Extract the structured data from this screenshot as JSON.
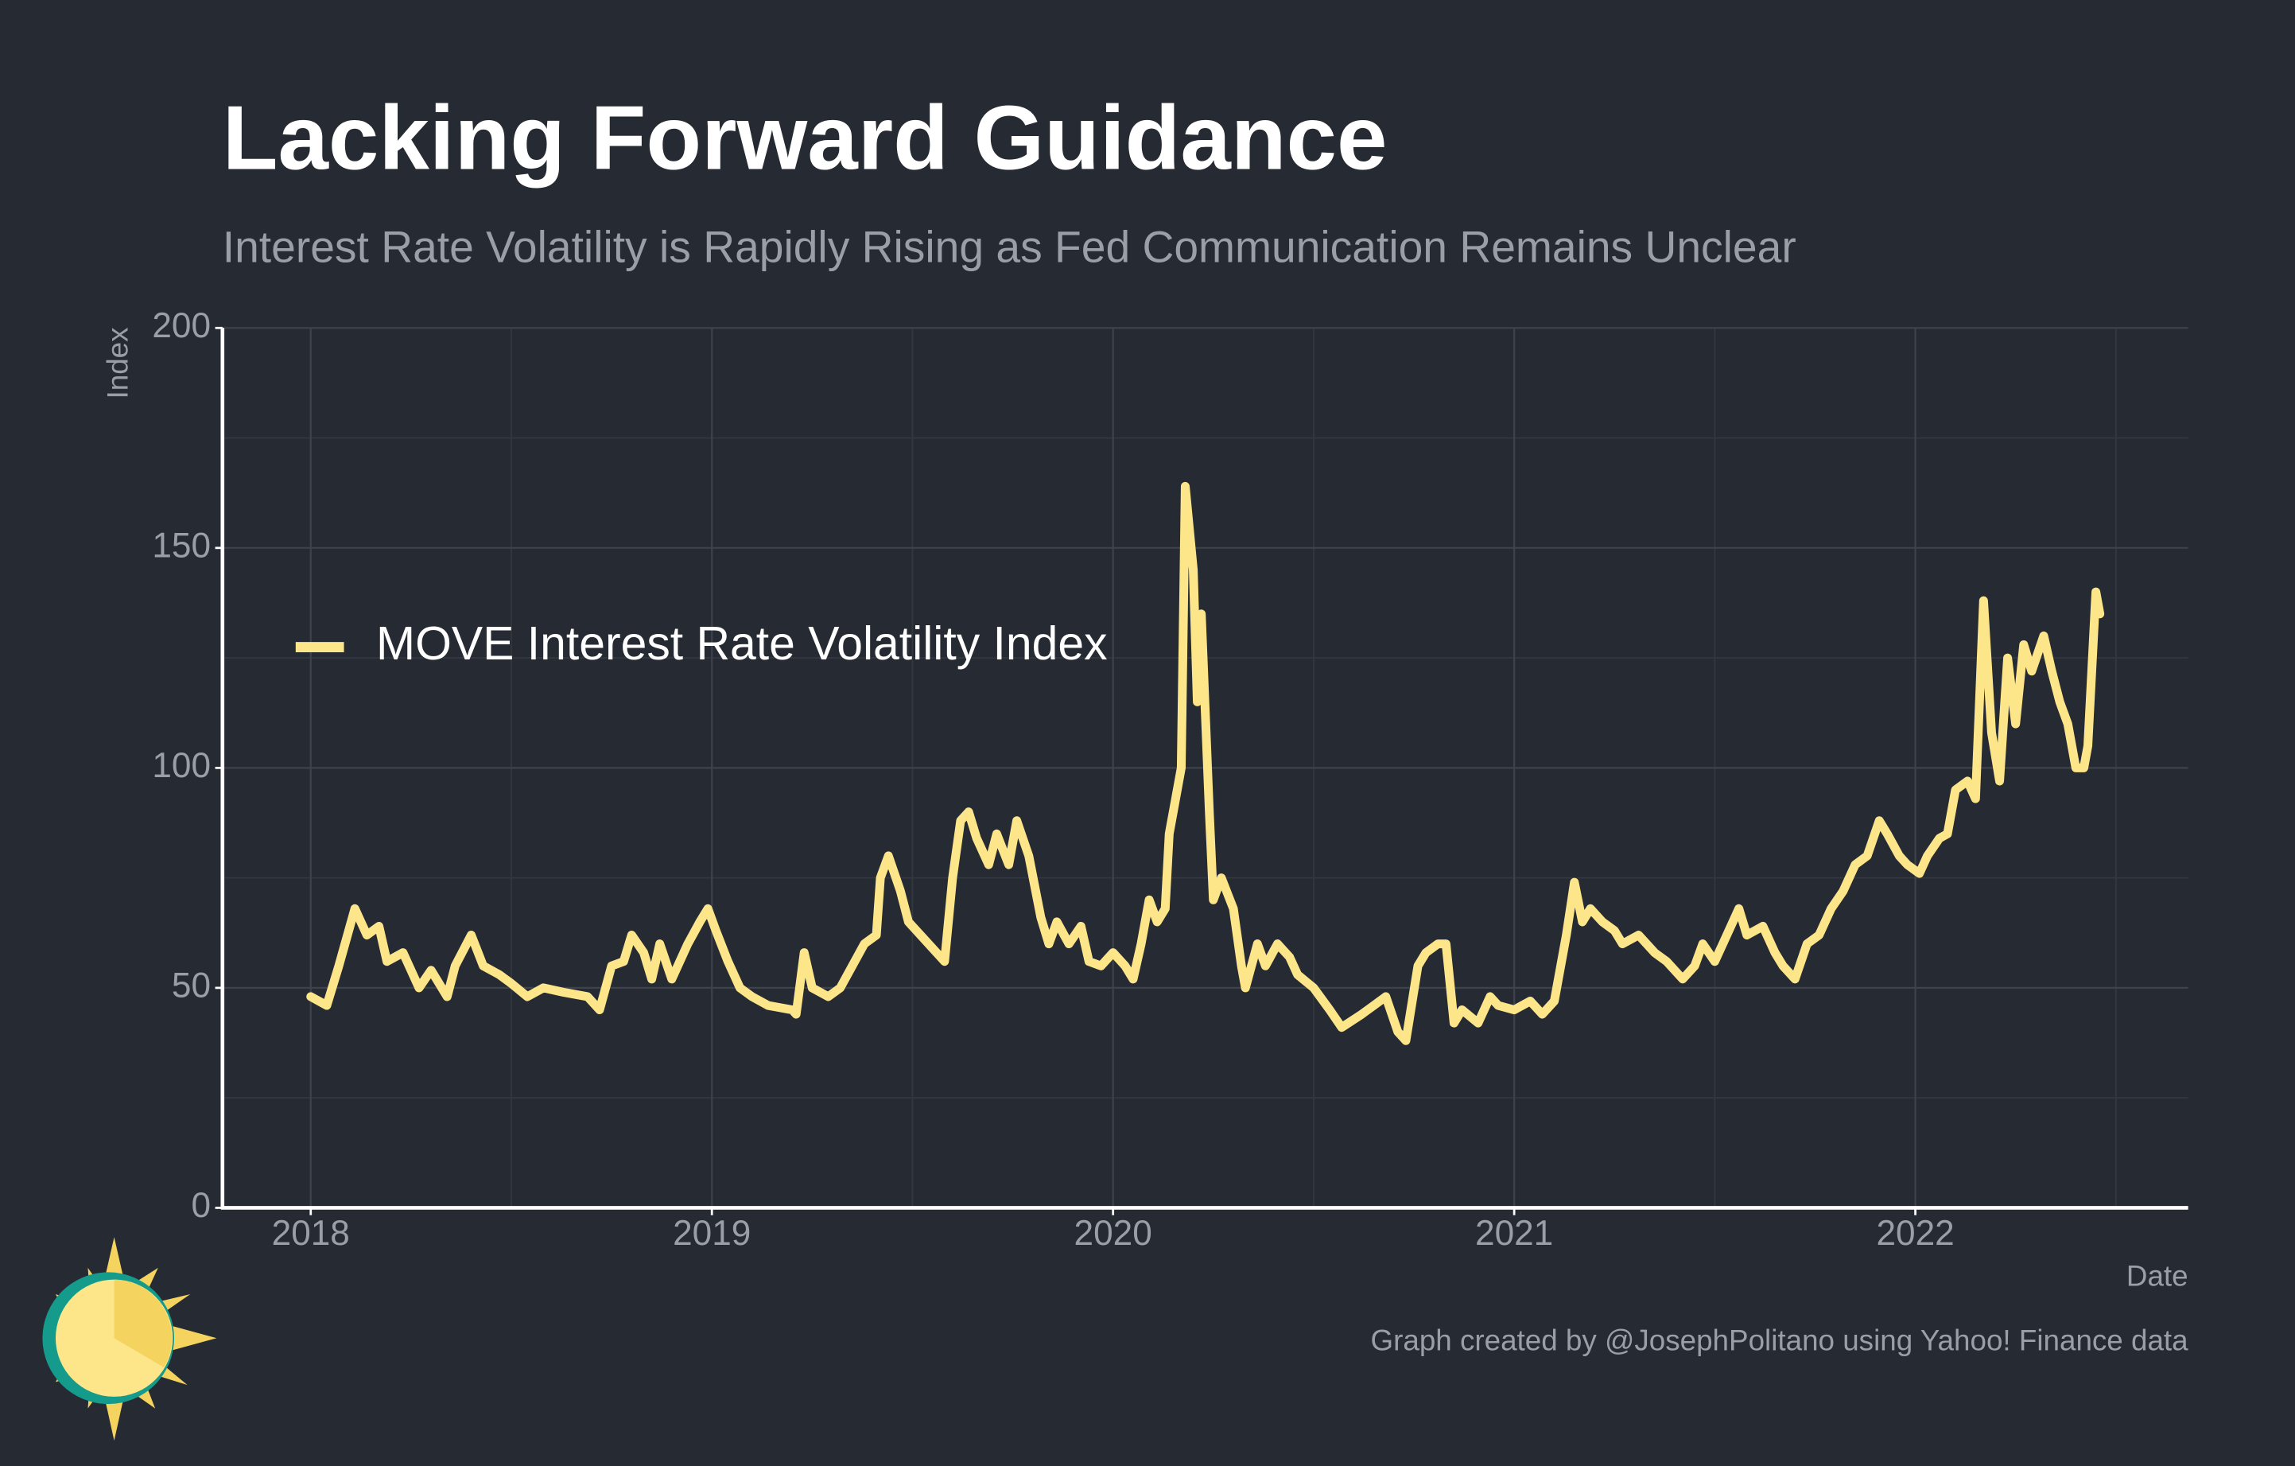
{
  "chart_data": {
    "type": "line",
    "title": "Lacking Forward Guidance",
    "subtitle": "Interest Rate Volatility is Rapidly Rising as Fed Communication Remains Unclear",
    "y_label": "Index",
    "x_label": "Date",
    "caption": "Graph created by @JosephPolitano using Yahoo! Finance data",
    "xlim": [
      2017.78,
      2022.68
    ],
    "xticks": [
      2018,
      2019,
      2020,
      2021,
      2022
    ],
    "ylim": [
      0,
      200
    ],
    "yticks": [
      0,
      50,
      100,
      150,
      200
    ],
    "grid": true,
    "legend": "left",
    "x": [
      2018.0,
      2018.04,
      2018.07,
      2018.11,
      2018.14,
      2018.17,
      2018.19,
      2018.23,
      2018.27,
      2018.3,
      2018.34,
      2018.36,
      2018.4,
      2018.43,
      2018.47,
      2018.5,
      2018.54,
      2018.58,
      2018.63,
      2018.69,
      2018.72,
      2018.75,
      2018.78,
      2018.8,
      2018.83,
      2018.85,
      2018.87,
      2018.9,
      2018.94,
      2018.97,
      2018.99,
      2019.01,
      2019.04,
      2019.07,
      2019.1,
      2019.14,
      2019.2,
      2019.21,
      2019.23,
      2019.25,
      2019.29,
      2019.32,
      2019.35,
      2019.38,
      2019.41,
      2019.42,
      2019.44,
      2019.47,
      2019.49,
      2019.52,
      2019.56,
      2019.58,
      2019.6,
      2019.62,
      2019.64,
      2019.66,
      2019.69,
      2019.71,
      2019.74,
      2019.76,
      2019.79,
      2019.82,
      2019.84,
      2019.86,
      2019.89,
      2019.92,
      2019.94,
      2019.97,
      2020.0,
      2020.03,
      2020.05,
      2020.07,
      2020.09,
      2020.11,
      2020.13,
      2020.14,
      2020.17,
      2020.18,
      2020.2,
      2020.21,
      2020.22,
      2020.24,
      2020.25,
      2020.27,
      2020.3,
      2020.32,
      2020.33,
      2020.36,
      2020.38,
      2020.41,
      2020.44,
      2020.46,
      2020.5,
      2020.54,
      2020.57,
      2020.62,
      2020.65,
      2020.68,
      2020.71,
      2020.73,
      2020.76,
      2020.78,
      2020.81,
      2020.83,
      2020.85,
      2020.87,
      2020.91,
      2020.94,
      2020.96,
      2021.0,
      2021.04,
      2021.07,
      2021.1,
      2021.13,
      2021.15,
      2021.17,
      2021.19,
      2021.22,
      2021.25,
      2021.27,
      2021.31,
      2021.35,
      2021.38,
      2021.42,
      2021.45,
      2021.47,
      2021.5,
      2021.53,
      2021.56,
      2021.58,
      2021.62,
      2021.65,
      2021.67,
      2021.7,
      2021.73,
      2021.76,
      2021.79,
      2021.82,
      2021.85,
      2021.88,
      2021.91,
      2021.93,
      2021.96,
      2021.98,
      2022.01,
      2022.03,
      2022.06,
      2022.08,
      2022.1,
      2022.13,
      2022.15,
      2022.17,
      2022.19,
      2022.21,
      2022.23,
      2022.25,
      2022.27,
      2022.29,
      2022.32,
      2022.34,
      2022.36,
      2022.38,
      2022.4,
      2022.42,
      2022.43,
      2022.45,
      2022.46
    ],
    "series": [
      {
        "name": "MOVE Interest Rate Volatility Index",
        "color": "#fde68a",
        "values": [
          48,
          46,
          55,
          68,
          62,
          64,
          56,
          58,
          50,
          54,
          48,
          55,
          62,
          55,
          53,
          51,
          48,
          50,
          49,
          48,
          45,
          55,
          56,
          62,
          58,
          52,
          60,
          52,
          60,
          65,
          68,
          63,
          56,
          50,
          48,
          46,
          45,
          44,
          58,
          50,
          48,
          50,
          55,
          60,
          62,
          75,
          80,
          72,
          65,
          62,
          58,
          56,
          75,
          88,
          90,
          84,
          78,
          85,
          78,
          88,
          80,
          66,
          60,
          65,
          60,
          64,
          56,
          55,
          58,
          55,
          52,
          60,
          70,
          65,
          68,
          85,
          100,
          164,
          145,
          115,
          135,
          90,
          70,
          75,
          68,
          55,
          50,
          60,
          55,
          60,
          57,
          53,
          50,
          45,
          41,
          44,
          46,
          48,
          40,
          38,
          55,
          58,
          60,
          60,
          42,
          45,
          42,
          48,
          46,
          45,
          47,
          44,
          47,
          62,
          74,
          65,
          68,
          65,
          63,
          60,
          62,
          58,
          56,
          52,
          55,
          60,
          56,
          62,
          68,
          62,
          64,
          58,
          55,
          52,
          60,
          62,
          68,
          72,
          78,
          80,
          88,
          85,
          80,
          78,
          76,
          80,
          84,
          85,
          95,
          97,
          93,
          138,
          108,
          97,
          125,
          110,
          128,
          122,
          130,
          122,
          115,
          110,
          100,
          100,
          105,
          140,
          135
        ]
      }
    ]
  }
}
